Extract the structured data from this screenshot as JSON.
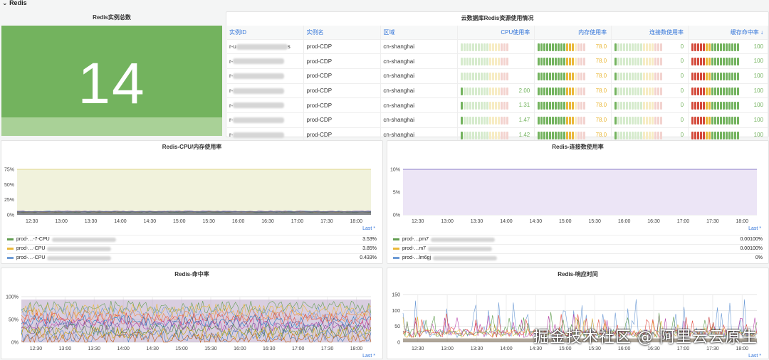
{
  "row_title": "Redis",
  "stat_panel": {
    "title": "Redis实例总数",
    "value": "14"
  },
  "table_panel": {
    "title": "云数据库Redis资源使用情况",
    "columns": [
      "实例ID",
      "实例名",
      "区域",
      "CPU使用率",
      "内存使用率",
      "连接数使用率",
      "缓存命中率 ↓"
    ],
    "rows": [
      {
        "id": "r-u",
        "id_suffix": "s",
        "name": "prod-CDP",
        "region": "cn-shanghai",
        "cpu": "",
        "cpu_level": 0.0,
        "mem": "78.0",
        "mem_level": 0.78,
        "conn": "0",
        "hit": "100"
      },
      {
        "id": "r-",
        "id_suffix": "",
        "name": "prod-CDP",
        "region": "cn-shanghai",
        "cpu": "",
        "cpu_level": 0.0,
        "mem": "78.0",
        "mem_level": 0.78,
        "conn": "0",
        "hit": "100"
      },
      {
        "id": "r-",
        "id_suffix": "",
        "name": "prod-CDP",
        "region": "cn-shanghai",
        "cpu": "",
        "cpu_level": 0.0,
        "mem": "78.0",
        "mem_level": 0.78,
        "conn": "0",
        "hit": "100"
      },
      {
        "id": "r-",
        "id_suffix": "",
        "name": "prod-CDP",
        "region": "cn-shanghai",
        "cpu": "2.00",
        "cpu_level": 0.02,
        "mem": "78.0",
        "mem_level": 0.78,
        "conn": "0",
        "hit": "100"
      },
      {
        "id": "r-",
        "id_suffix": "",
        "name": "prod-CDP",
        "region": "cn-shanghai",
        "cpu": "1.31",
        "cpu_level": 0.013,
        "mem": "78.0",
        "mem_level": 0.78,
        "conn": "0",
        "hit": "100"
      },
      {
        "id": "r-",
        "id_suffix": "",
        "name": "prod-CDP",
        "region": "cn-shanghai",
        "cpu": "1.47",
        "cpu_level": 0.015,
        "mem": "78.0",
        "mem_level": 0.78,
        "conn": "0",
        "hit": "100"
      },
      {
        "id": "r-",
        "id_suffix": "",
        "name": "prod-CDP",
        "region": "cn-shanghai",
        "cpu": "1.42",
        "cpu_level": 0.014,
        "mem": "78.0",
        "mem_level": 0.78,
        "conn": "0",
        "hit": "100"
      }
    ]
  },
  "cpu_mem_panel": {
    "title": "Redis-CPU/内存使用率",
    "chart_data": {
      "type": "line",
      "x": [
        "12:30",
        "13:00",
        "13:30",
        "14:00",
        "14:30",
        "15:00",
        "15:30",
        "16:00",
        "16:30",
        "17:00",
        "17:30",
        "18:00"
      ],
      "y_ticks": [
        "75%",
        "50%",
        "25%",
        "0%"
      ],
      "ylim": [
        0,
        0.75
      ],
      "series": [
        {
          "name": "prod-…-7-CPU",
          "color": "#629e51",
          "value": "3.53%"
        },
        {
          "name": "prod-…-CPU",
          "color": "#eab839",
          "value": "3.85%"
        },
        {
          "name": "prod-…-CPU",
          "color": "#6d9bd5",
          "value": "0.433%"
        }
      ]
    },
    "last_label": "Last *"
  },
  "conn_panel": {
    "title": "Redis-连接数使用率",
    "chart_data": {
      "type": "line",
      "x": [
        "12:30",
        "13:00",
        "13:30",
        "14:00",
        "14:30",
        "15:00",
        "15:30",
        "16:00",
        "16:30",
        "17:00",
        "17:30",
        "18:00"
      ],
      "y_ticks": [
        "10%",
        "5%",
        "0%"
      ],
      "ylim": [
        0,
        0.1
      ],
      "series": [
        {
          "name": "prod-…pm7",
          "color": "#629e51",
          "value": "0.00100%"
        },
        {
          "name": "prod-…m7",
          "color": "#eab839",
          "value": "0.00100%"
        },
        {
          "name": "prod-…lm6gj",
          "color": "#6d9bd5",
          "value": "0%"
        }
      ]
    },
    "last_label": "Last *"
  },
  "hit_panel": {
    "title": "Redis-命中率",
    "chart_data": {
      "type": "line",
      "x": [
        "12:30",
        "13:00",
        "13:30",
        "14:00",
        "14:30",
        "15:00",
        "15:30",
        "16:00",
        "16:30",
        "17:00",
        "17:30",
        "18:00"
      ],
      "y_ticks": [
        "100%",
        "50%",
        "0%"
      ],
      "ylim": [
        0,
        1.0
      ]
    },
    "last_label": "Last *"
  },
  "rt_panel": {
    "title": "Redis-响应时间",
    "chart_data": {
      "type": "line",
      "x": [
        "12:30",
        "13:00",
        "13:30",
        "14:00",
        "14:30",
        "15:00",
        "15:30",
        "16:00",
        "16:30",
        "17:00",
        "17:30",
        "18:00"
      ],
      "y_ticks": [
        "150",
        "100",
        "50",
        "0"
      ],
      "ylim": [
        0,
        150
      ]
    },
    "last_label": "Last *"
  },
  "watermark": "掘金技术社区 @ 阿里云云原生",
  "colors": {
    "green": "#73b35e",
    "red": "#d44a3a",
    "yellow": "#eab839",
    "link": "#3274d9"
  }
}
